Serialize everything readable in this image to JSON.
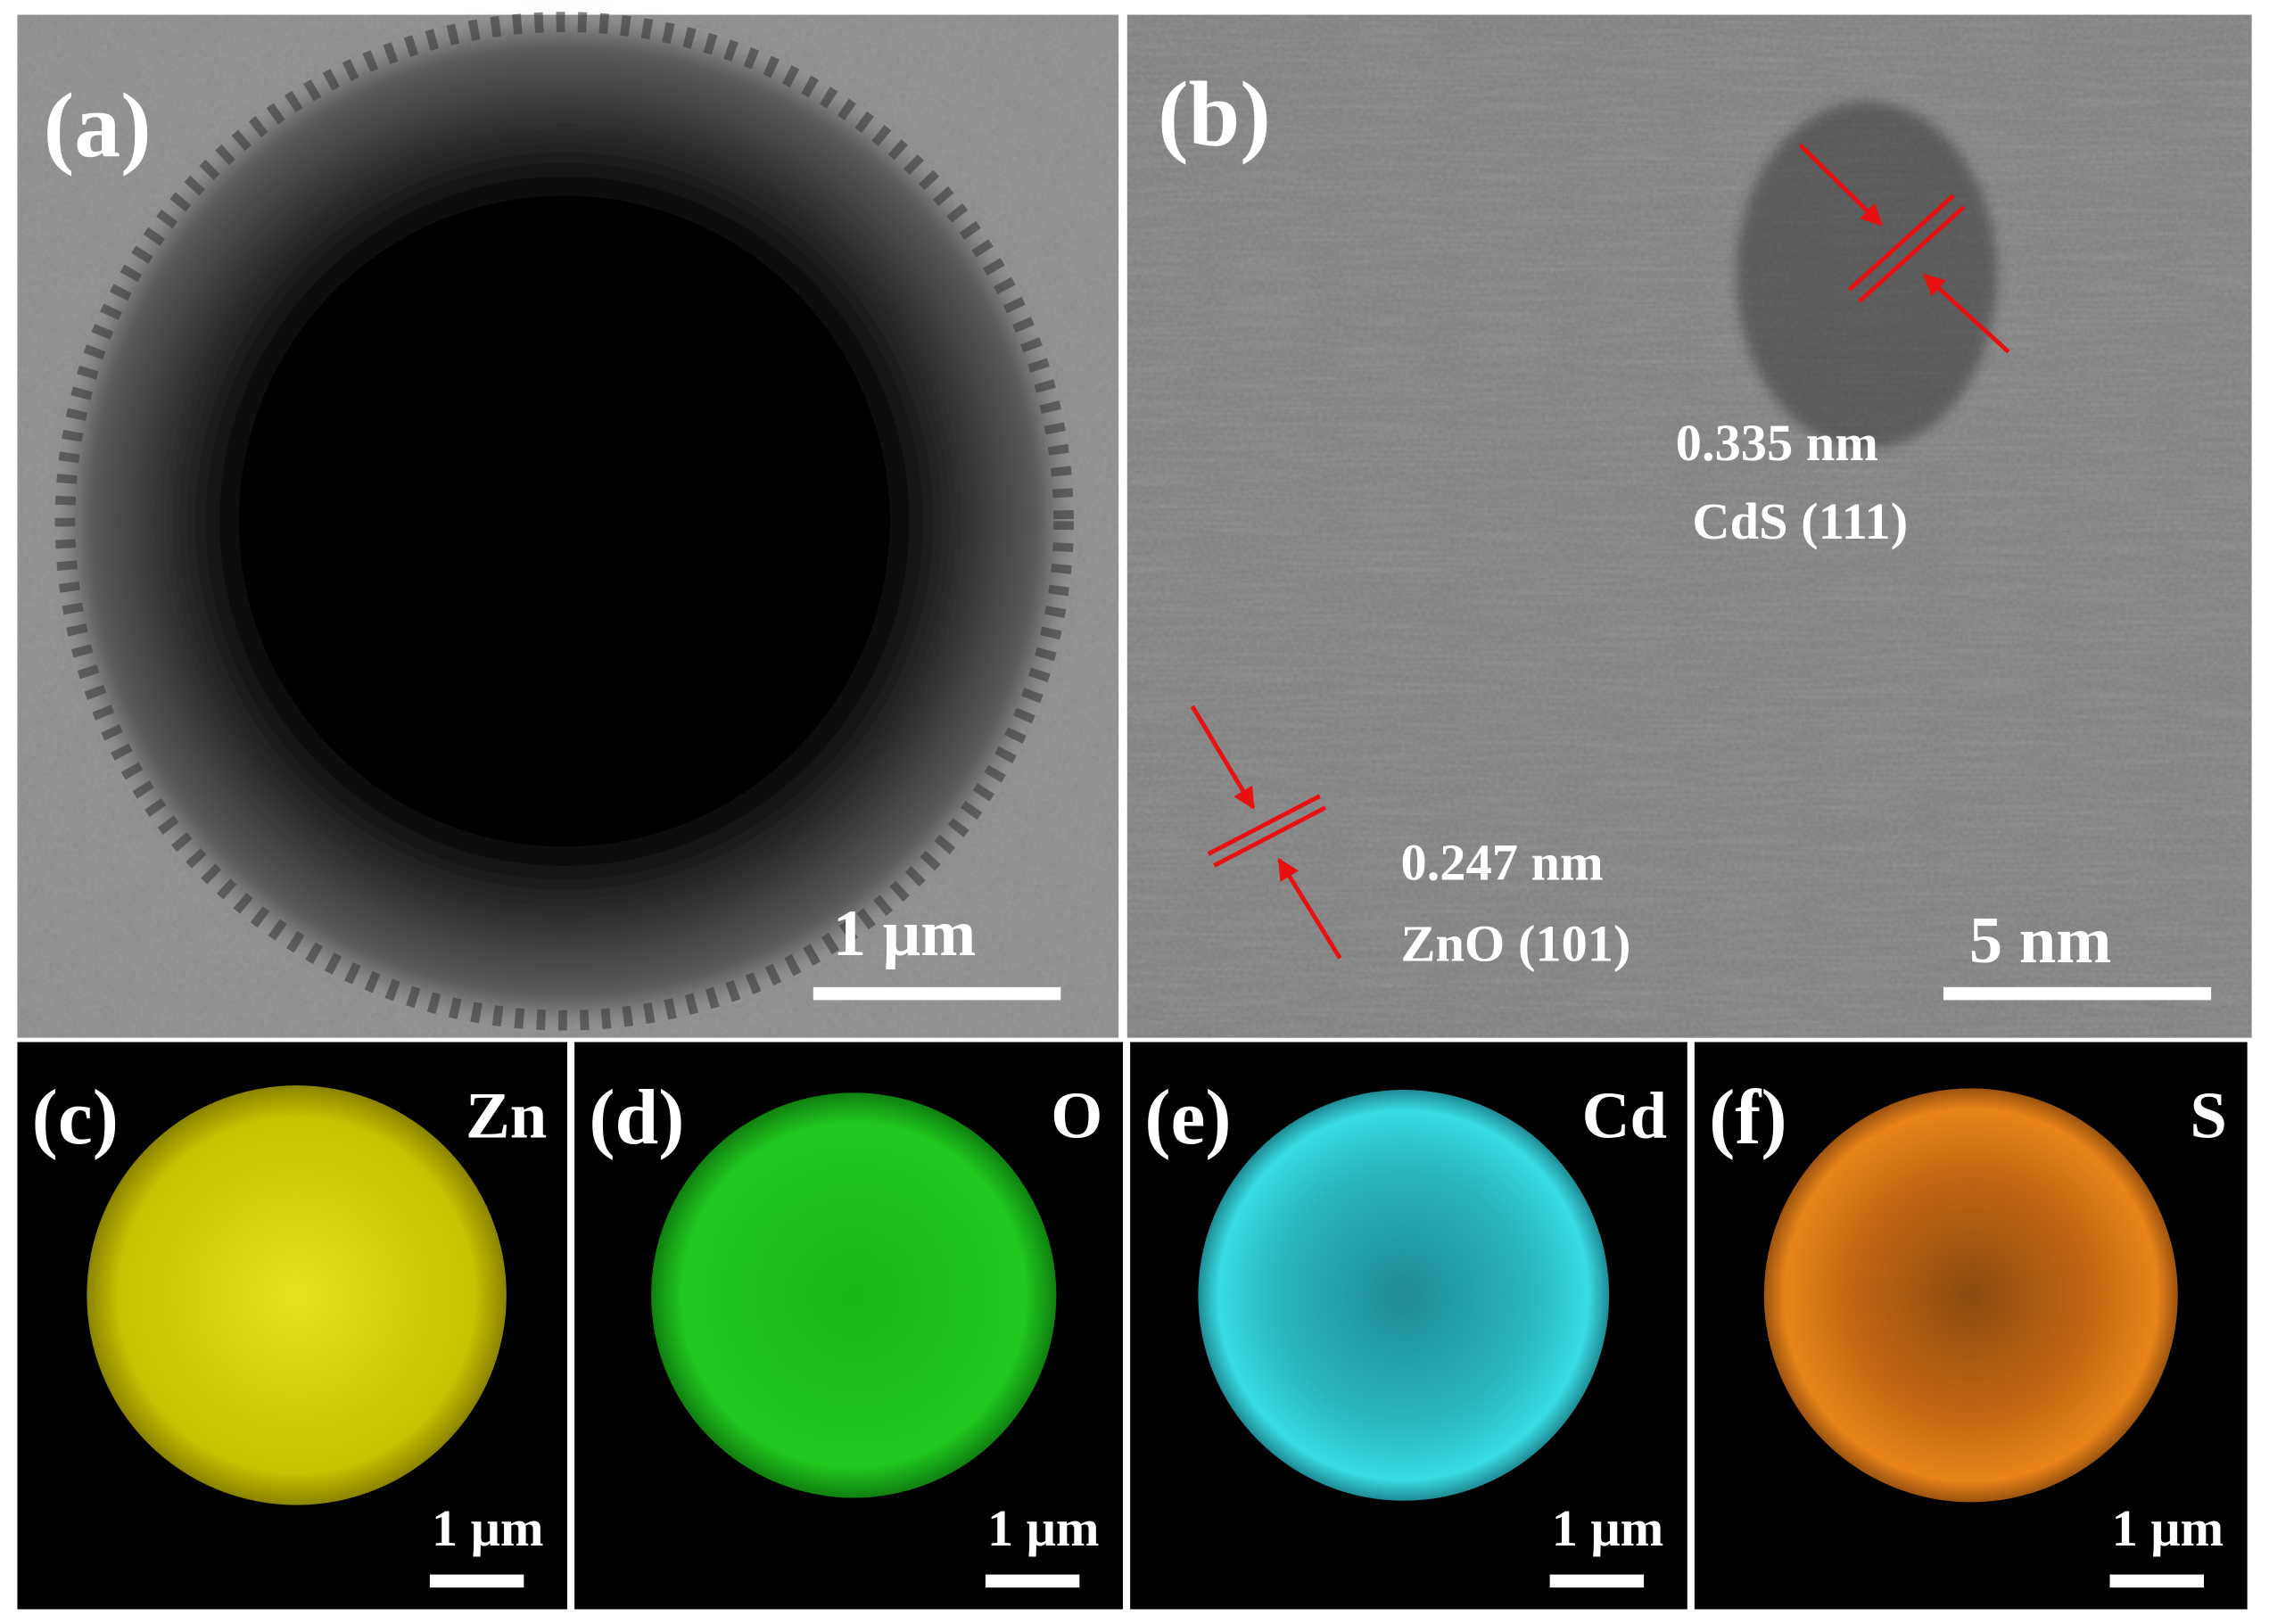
{
  "panels": [
    {
      "label": "(a)",
      "scale_bar": "1 μm"
    },
    {
      "label": "(b)",
      "scale_bar": "5 nm",
      "annotations": [
        {
          "spacing": "0.335 nm",
          "plane": "CdS (111)"
        },
        {
          "spacing": "0.247 nm",
          "plane": "ZnO (101)"
        }
      ]
    },
    {
      "label": "(c)",
      "element": "Zn",
      "scale_bar": "1 μm"
    },
    {
      "label": "(d)",
      "element": "O",
      "scale_bar": "1 μm"
    },
    {
      "label": "(e)",
      "element": "Cd",
      "scale_bar": "1 μm"
    },
    {
      "label": "(f)",
      "element": "S",
      "scale_bar": "1 μm"
    }
  ]
}
